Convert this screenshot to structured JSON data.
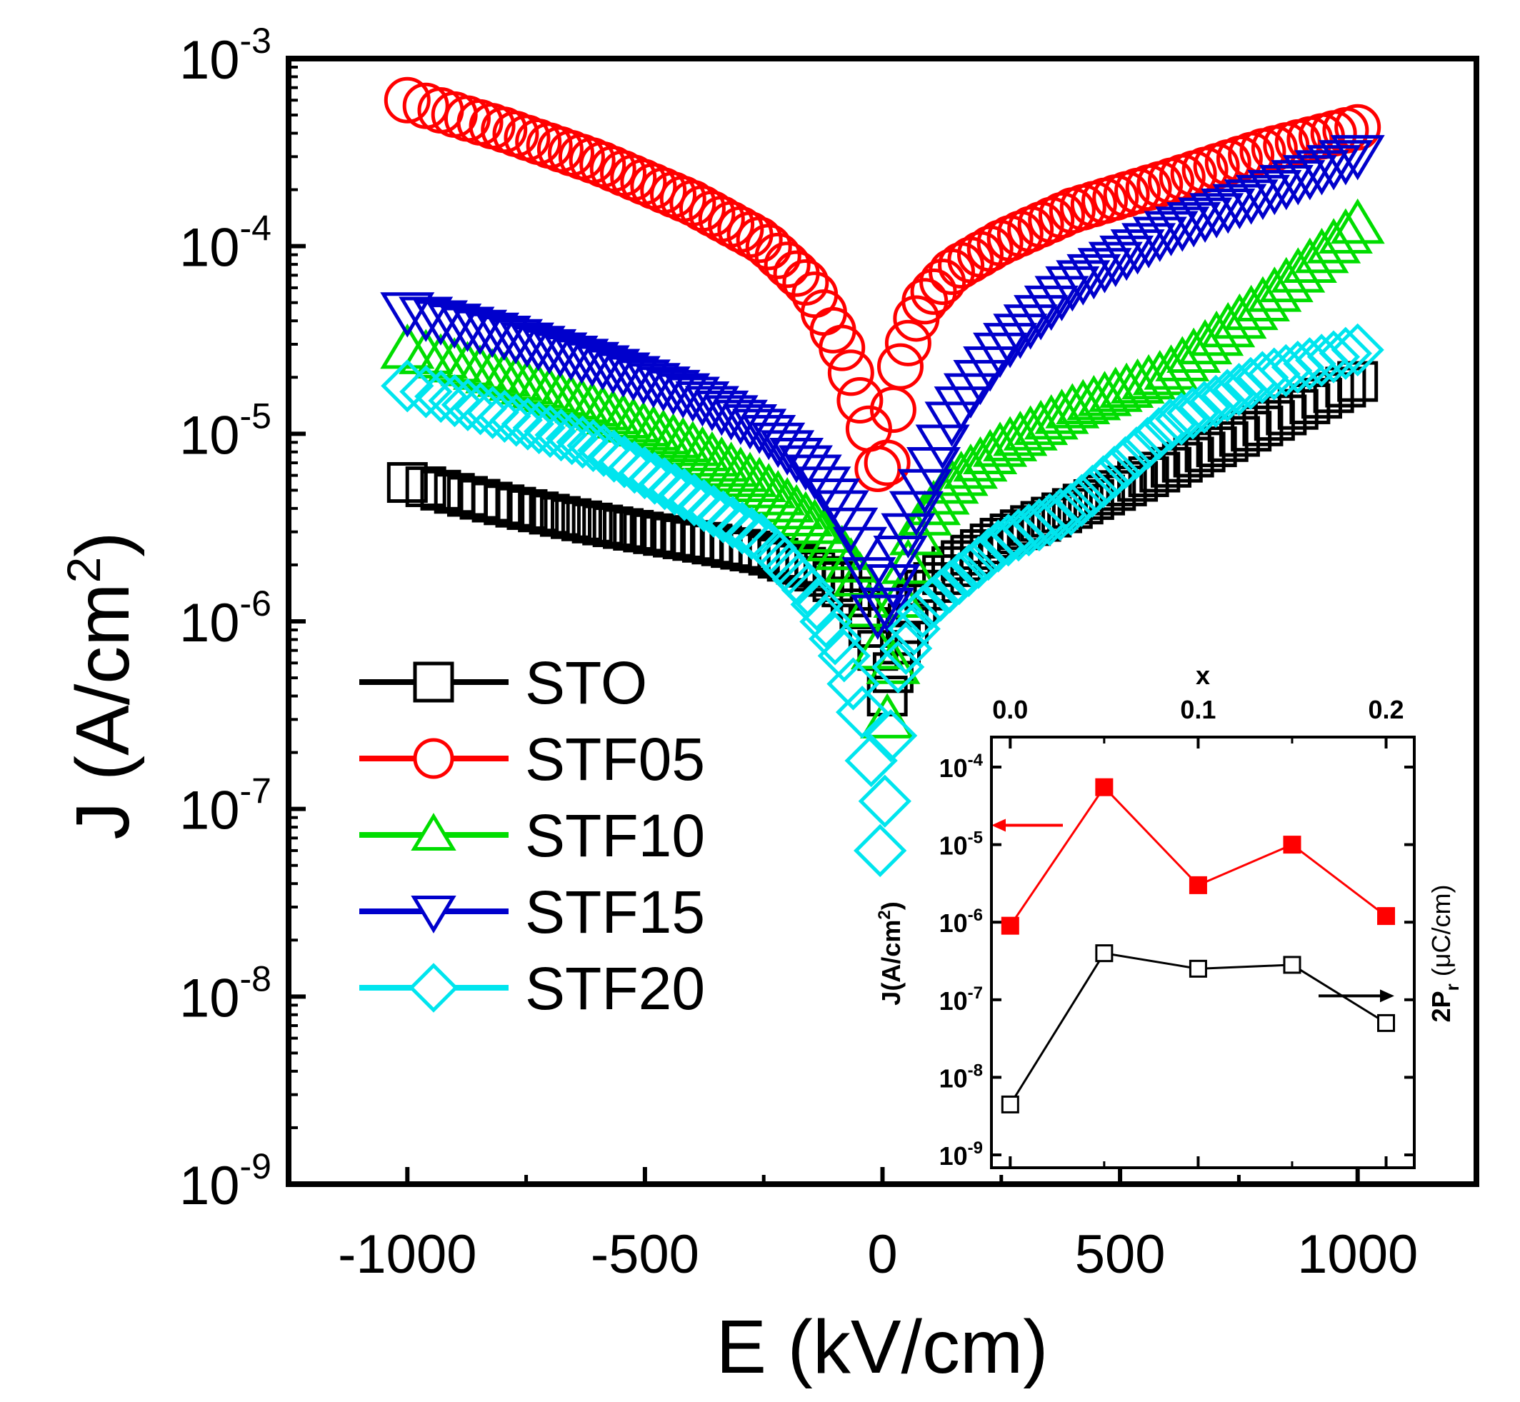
{
  "chart_data": [
    {
      "type": "scatter",
      "title": "",
      "xlabel": "E (kV/cm)",
      "ylabel": "J (A/cm²)",
      "yscale": "log",
      "xlim": [
        -1250,
        1250
      ],
      "ylim": [
        1e-09,
        0.001
      ],
      "xticks": [
        {
          "value": -1000,
          "label": "-1000"
        },
        {
          "value": -500,
          "label": "-500"
        },
        {
          "value": 0,
          "label": "0"
        },
        {
          "value": 500,
          "label": "500"
        },
        {
          "value": 1000,
          "label": "1000"
        }
      ],
      "yticks": [
        {
          "value": -3,
          "base": "10",
          "exp": "-3"
        },
        {
          "value": -4,
          "base": "10",
          "exp": "-4"
        },
        {
          "value": -5,
          "base": "10",
          "exp": "-5"
        },
        {
          "value": -6,
          "base": "10",
          "exp": "-6"
        },
        {
          "value": -7,
          "base": "10",
          "exp": "-7"
        },
        {
          "value": -8,
          "base": "10",
          "exp": "-8"
        },
        {
          "value": -9,
          "base": "10",
          "exp": "-9"
        }
      ],
      "legend": {
        "position": "bottom-left"
      },
      "series": [
        {
          "name": "STO",
          "marker": "square",
          "color": "#000000",
          "neg": [
            [
              -1000,
              5.5e-06
            ],
            [
              -800,
              4.2e-06
            ],
            [
              -600,
              3.3e-06
            ],
            [
              -400,
              2.7e-06
            ],
            [
              -250,
              2.3e-06
            ],
            [
              -150,
              1.9e-06
            ],
            [
              -80,
              1.5e-06
            ],
            [
              -40,
              1.1e-06
            ],
            [
              -10,
              7e-07
            ]
          ],
          "pos": [
            [
              10,
              4e-07
            ],
            [
              40,
              8e-07
            ],
            [
              80,
              1.4e-06
            ],
            [
              150,
              2e-06
            ],
            [
              250,
              2.8e-06
            ],
            [
              400,
              4e-06
            ],
            [
              600,
              6.5e-06
            ],
            [
              800,
              1.1e-05
            ],
            [
              1000,
              1.9e-05
            ]
          ]
        },
        {
          "name": "STF05",
          "marker": "circle",
          "color": "#ff0000",
          "neg": [
            [
              -1000,
              0.0006
            ],
            [
              -800,
              0.00042
            ],
            [
              -600,
              0.00028
            ],
            [
              -400,
              0.00017
            ],
            [
              -250,
              0.000105
            ],
            [
              -150,
              6e-05
            ],
            [
              -80,
              2.7e-05
            ],
            [
              -30,
              1.1e-05
            ],
            [
              -10,
              6.5e-06
            ]
          ],
          "pos": [
            [
              10,
              7e-06
            ],
            [
              30,
              2e-05
            ],
            [
              80,
              4.8e-05
            ],
            [
              150,
              7.5e-05
            ],
            [
              250,
              0.000105
            ],
            [
              400,
              0.000155
            ],
            [
              600,
              0.00022
            ],
            [
              800,
              0.00032
            ],
            [
              1000,
              0.00043
            ]
          ]
        },
        {
          "name": "STF10",
          "marker": "triangle-up",
          "color": "#00dd00",
          "neg": [
            [
              -1000,
              2.8e-05
            ],
            [
              -800,
              2e-05
            ],
            [
              -600,
              1.35e-05
            ],
            [
              -400,
              8.5e-06
            ],
            [
              -250,
              5.3e-06
            ],
            [
              -150,
              3.4e-06
            ],
            [
              -80,
              2.3e-06
            ],
            [
              -40,
              1.6e-06
            ],
            [
              -10,
              7e-07
            ]
          ],
          "pos": [
            [
              10,
              3e-07
            ],
            [
              40,
              1.5e-06
            ],
            [
              80,
              3.4e-06
            ],
            [
              150,
              5.5e-06
            ],
            [
              250,
              8.5e-06
            ],
            [
              400,
              1.35e-05
            ],
            [
              600,
              2.1e-05
            ],
            [
              800,
              5e-05
            ],
            [
              1000,
              0.00013
            ]
          ]
        },
        {
          "name": "STF15",
          "marker": "triangle-down",
          "color": "#0000cc",
          "neg": [
            [
              -1000,
              4.5e-05
            ],
            [
              -800,
              3.4e-05
            ],
            [
              -600,
              2.4e-05
            ],
            [
              -400,
              1.6e-05
            ],
            [
              -250,
              1.05e-05
            ],
            [
              -150,
              6.5e-06
            ],
            [
              -80,
              3.8e-06
            ],
            [
              -40,
              2.3e-06
            ],
            [
              -10,
              1.1e-06
            ]
          ],
          "pos": [
            [
              10,
              1.2e-06
            ],
            [
              40,
              2.4e-06
            ],
            [
              80,
              4.5e-06
            ],
            [
              150,
              1.25e-05
            ],
            [
              250,
              2.8e-05
            ],
            [
              400,
              6.2e-05
            ],
            [
              600,
              0.00012
            ],
            [
              800,
              0.00019
            ],
            [
              1000,
              0.00031
            ]
          ]
        },
        {
          "name": "STF20",
          "marker": "diamond",
          "color": "#00e5ee",
          "neg": [
            [
              -1000,
              1.8e-05
            ],
            [
              -800,
              1.25e-05
            ],
            [
              -600,
              8.5e-06
            ],
            [
              -400,
              4.5e-06
            ],
            [
              -250,
              2.7e-06
            ],
            [
              -150,
              1.4e-06
            ],
            [
              -80,
              6.5e-07
            ],
            [
              -30,
              2.6e-07
            ],
            [
              -5,
              6e-08
            ]
          ],
          "pos": [
            [
              5,
              1.1e-07
            ],
            [
              30,
              5.5e-07
            ],
            [
              80,
              1.1e-06
            ],
            [
              150,
              1.6e-06
            ],
            [
              250,
              2.6e-06
            ],
            [
              400,
              4e-06
            ],
            [
              600,
              1.1e-05
            ],
            [
              800,
              2e-05
            ],
            [
              1000,
              2.8e-05
            ]
          ]
        }
      ]
    },
    {
      "type": "line",
      "title": "",
      "xlabel": "x",
      "ylabel_left": "J(A/cm²)",
      "ylabel_right": "2Pr (μC/cm)",
      "x": [
        0.0,
        0.05,
        0.1,
        0.15,
        0.2
      ],
      "xlim": [
        -0.01,
        0.215
      ],
      "xticks": [
        {
          "value": 0.0,
          "label": "0.0"
        },
        {
          "value": 0.1,
          "label": "0.1"
        },
        {
          "value": 0.2,
          "label": "0.2"
        }
      ],
      "ylim": [
        1e-09,
        0.0001
      ],
      "yticks": [
        {
          "value": -4,
          "base": "10",
          "exp": "-4"
        },
        {
          "value": -5,
          "base": "10",
          "exp": "-5"
        },
        {
          "value": -6,
          "base": "10",
          "exp": "-6"
        },
        {
          "value": -7,
          "base": "10",
          "exp": "-7"
        },
        {
          "value": -8,
          "base": "10",
          "exp": "-8"
        },
        {
          "value": -9,
          "base": "10",
          "exp": "-9"
        }
      ],
      "series": [
        {
          "name": "J",
          "axis": "left",
          "marker": "square-filled",
          "color": "#ff0000",
          "values": [
            9e-07,
            5.5e-05,
            3e-06,
            1e-05,
            1.2e-06
          ]
        },
        {
          "name": "2Pr",
          "axis": "right",
          "marker": "square-open",
          "color": "#000000",
          "values_in_left_log_units": [
            -8.35,
            -6.4,
            -6.6,
            -6.55,
            -7.3
          ]
        }
      ]
    }
  ]
}
